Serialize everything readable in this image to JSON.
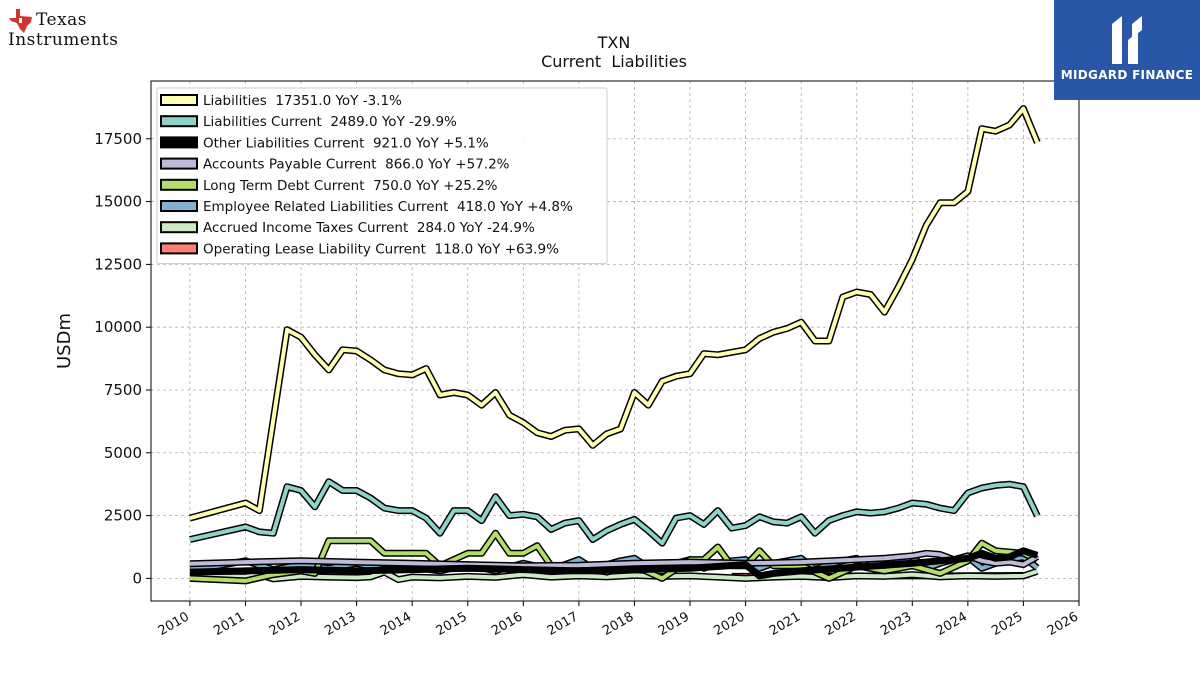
{
  "brand": {
    "left_logo_line1": "Texas",
    "left_logo_line2": "Instruments",
    "right_badge_text": "MIDGARD FINANCE",
    "right_badge_color": "#2a56a8",
    "left_logo_icon": "texas-state-icon"
  },
  "chart_data": {
    "type": "line",
    "title": "TXN",
    "subtitle": "Current  Liabilities",
    "xlabel": "",
    "ylabel": "USDm",
    "xlim": [
      2009.3,
      2026.0
    ],
    "ylim": [
      -900,
      19800
    ],
    "x_ticks": [
      "2010",
      "2011",
      "2012",
      "2013",
      "2014",
      "2015",
      "2016",
      "2017",
      "2018",
      "2019",
      "2020",
      "2021",
      "2022",
      "2023",
      "2024",
      "2025",
      "2026"
    ],
    "y_ticks": [
      0,
      2500,
      5000,
      7500,
      10000,
      12500,
      15000,
      17500
    ],
    "grid": true,
    "legend_position": "top-left",
    "series": [
      {
        "name": "Liabilities  17351.0 YoY -3.1%",
        "color": "#ffffb3",
        "x": [
          2010.0,
          2011.0,
          2011.25,
          2011.75,
          2012.0,
          2012.25,
          2012.5,
          2012.75,
          2013.0,
          2013.25,
          2013.5,
          2013.75,
          2014.0,
          2014.25,
          2014.5,
          2014.75,
          2015.0,
          2015.25,
          2015.5,
          2015.75,
          2016.0,
          2016.25,
          2016.5,
          2016.75,
          2017.0,
          2017.25,
          2017.5,
          2017.75,
          2018.0,
          2018.25,
          2018.5,
          2018.75,
          2019.0,
          2019.25,
          2019.5,
          2019.75,
          2020.0,
          2020.25,
          2020.5,
          2020.75,
          2021.0,
          2021.25,
          2021.5,
          2021.75,
          2022.0,
          2022.25,
          2022.5,
          2022.75,
          2023.0,
          2023.25,
          2023.5,
          2023.75,
          2024.0,
          2024.25,
          2024.5,
          2024.75,
          2025.0,
          2025.25
        ],
        "values": [
          2400,
          3000,
          2700,
          9900,
          9600,
          8900,
          8300,
          9100,
          9050,
          8700,
          8300,
          8150,
          8100,
          8350,
          7300,
          7400,
          7300,
          6900,
          7400,
          6500,
          6200,
          5800,
          5650,
          5900,
          5950,
          5300,
          5750,
          5950,
          7400,
          6900,
          7850,
          8050,
          8150,
          8950,
          8900,
          9000,
          9100,
          9550,
          9800,
          9950,
          10200,
          9450,
          9450,
          11200,
          11400,
          11300,
          10600,
          11600,
          12700,
          14050,
          14950,
          14950,
          15400,
          17900,
          17800,
          18050,
          18700,
          17351
        ]
      },
      {
        "name": "Liabilities Current  2489.0 YoY -29.9%",
        "color": "#8dd3c7",
        "x": [
          2010.0,
          2011.0,
          2011.25,
          2011.5,
          2011.75,
          2012.0,
          2012.25,
          2012.5,
          2012.75,
          2013.0,
          2013.25,
          2013.5,
          2013.75,
          2014.0,
          2014.25,
          2014.5,
          2014.75,
          2015.0,
          2015.25,
          2015.5,
          2015.75,
          2016.0,
          2016.25,
          2016.5,
          2016.75,
          2017.0,
          2017.25,
          2017.5,
          2017.75,
          2018.0,
          2018.25,
          2018.5,
          2018.75,
          2019.0,
          2019.25,
          2019.5,
          2019.75,
          2020.0,
          2020.25,
          2020.5,
          2020.75,
          2021.0,
          2021.25,
          2021.5,
          2021.75,
          2022.0,
          2022.25,
          2022.5,
          2022.75,
          2023.0,
          2023.25,
          2023.5,
          2023.75,
          2024.0,
          2024.25,
          2024.5,
          2024.75,
          2025.0,
          2025.25
        ],
        "values": [
          1550,
          2050,
          1850,
          1800,
          3650,
          3500,
          2850,
          3850,
          3500,
          3500,
          3200,
          2800,
          2700,
          2700,
          2400,
          1800,
          2700,
          2700,
          2300,
          3250,
          2500,
          2550,
          2450,
          1950,
          2200,
          2300,
          1550,
          1900,
          2150,
          2350,
          1900,
          1400,
          2400,
          2500,
          2150,
          2700,
          2000,
          2100,
          2450,
          2250,
          2200,
          2450,
          1800,
          2300,
          2500,
          2650,
          2600,
          2650,
          2800,
          3000,
          2950,
          2800,
          2700,
          3400,
          3600,
          3700,
          3750,
          3650,
          2489
        ]
      },
      {
        "name": "Other Liabilities Current  921.0 YoY +5.1%",
        "color": "#000000",
        "x": [
          2010.0,
          2011.0,
          2012.0,
          2013.0,
          2014.0,
          2015.0,
          2016.0,
          2017.0,
          2018.0,
          2019.0,
          2020.0,
          2020.25,
          2020.5,
          2021.0,
          2022.0,
          2023.0,
          2023.5,
          2024.0,
          2024.25,
          2024.5,
          2024.75,
          2025.0,
          2025.25
        ],
        "values": [
          250,
          300,
          350,
          300,
          350,
          400,
          350,
          300,
          350,
          400,
          550,
          100,
          200,
          300,
          450,
          600,
          700,
          800,
          1000,
          800,
          850,
          1100,
          921
        ]
      },
      {
        "name": "Accounts Payable Current  866.0 YoY +57.2%",
        "color": "#bebada",
        "x": [
          2010.0,
          2011.0,
          2012.0,
          2013.0,
          2014.0,
          2015.0,
          2016.0,
          2017.0,
          2018.0,
          2019.0,
          2020.0,
          2021.0,
          2022.0,
          2022.5,
          2023.0,
          2023.25,
          2023.5,
          2023.75,
          2024.0,
          2024.25,
          2024.5,
          2024.75,
          2025.0,
          2025.25
        ],
        "values": [
          580,
          650,
          700,
          650,
          600,
          550,
          500,
          520,
          600,
          650,
          600,
          650,
          750,
          800,
          900,
          1000,
          950,
          750,
          900,
          700,
          600,
          650,
          550,
          866
        ]
      },
      {
        "name": "Long Term Debt Current  750.0 YoY +25.2%",
        "color": "#b3de69",
        "x": [
          2010.0,
          2011.0,
          2011.5,
          2012.0,
          2012.25,
          2012.5,
          2013.0,
          2013.25,
          2013.5,
          2014.0,
          2014.25,
          2014.5,
          2015.0,
          2015.25,
          2015.5,
          2015.75,
          2016.0,
          2016.25,
          2016.5,
          2017.0,
          2017.5,
          2018.0,
          2018.5,
          2019.0,
          2019.25,
          2019.5,
          2019.75,
          2020.0,
          2020.25,
          2020.5,
          2021.0,
          2021.5,
          2022.0,
          2022.5,
          2023.0,
          2023.5,
          2024.0,
          2024.25,
          2024.5,
          2025.0,
          2025.25
        ],
        "values": [
          0,
          -100,
          150,
          300,
          200,
          1500,
          1500,
          1500,
          1000,
          1000,
          1000,
          500,
          1000,
          1000,
          1800,
          1000,
          1000,
          1300,
          500,
          500,
          250,
          500,
          0,
          750,
          750,
          1250,
          500,
          500,
          1100,
          500,
          500,
          0,
          500,
          300,
          500,
          200,
          700,
          1400,
          1100,
          1000,
          750
        ]
      },
      {
        "name": "Employee Related Liabilities Current  418.0 YoY +4.8%",
        "color": "#80b1d3",
        "x": [
          2010.0,
          2010.5,
          2011.0,
          2011.5,
          2012.0,
          2012.5,
          2013.0,
          2013.5,
          2014.0,
          2014.5,
          2015.0,
          2015.5,
          2016.0,
          2016.5,
          2017.0,
          2017.25,
          2017.5,
          2017.75,
          2018.0,
          2018.25,
          2018.5,
          2018.75,
          2019.0,
          2019.25,
          2019.5,
          2019.75,
          2020.0,
          2020.25,
          2020.5,
          2020.75,
          2021.0,
          2021.25,
          2021.5,
          2021.75,
          2022.0,
          2022.25,
          2022.5,
          2022.75,
          2023.0,
          2023.25,
          2023.5,
          2023.75,
          2024.0,
          2024.25,
          2024.5,
          2024.75,
          2025.0,
          2025.25
        ],
        "values": [
          400,
          500,
          700,
          350,
          550,
          400,
          600,
          350,
          450,
          300,
          550,
          300,
          600,
          350,
          750,
          400,
          550,
          700,
          800,
          450,
          500,
          600,
          750,
          400,
          600,
          700,
          750,
          400,
          600,
          700,
          800,
          350,
          550,
          700,
          800,
          400,
          550,
          700,
          850,
          400,
          600,
          750,
          850,
          400,
          600,
          750,
          850,
          418
        ]
      },
      {
        "name": "Accrued Income Taxes Current  284.0 YoY -24.9%",
        "color": "#ccebc5",
        "x": [
          2010.0,
          2011.0,
          2011.25,
          2011.5,
          2012.0,
          2012.5,
          2013.0,
          2013.25,
          2013.5,
          2013.75,
          2014.0,
          2014.5,
          2015.0,
          2015.5,
          2016.0,
          2016.5,
          2017.0,
          2017.5,
          2018.0,
          2018.5,
          2019.0,
          2019.5,
          2020.0,
          2020.5,
          2021.0,
          2021.5,
          2022.0,
          2022.5,
          2023.0,
          2023.5,
          2024.0,
          2024.5,
          2025.0,
          2025.25
        ],
        "values": [
          80,
          60,
          150,
          -20,
          80,
          50,
          30,
          60,
          250,
          -50,
          50,
          20,
          80,
          40,
          150,
          50,
          100,
          60,
          120,
          80,
          100,
          50,
          0,
          50,
          80,
          30,
          100,
          80,
          150,
          60,
          100,
          80,
          100,
          284
        ]
      },
      {
        "name": "Operating Lease Liability Current  118.0 YoY +63.9%",
        "color": "#fb8072",
        "x": [
          2019.75,
          2020.0,
          2020.5,
          2021.0,
          2021.5,
          2022.0,
          2022.5,
          2023.0,
          2023.5,
          2024.0,
          2024.5,
          2025.0
        ],
        "values": [
          80,
          80,
          85,
          90,
          90,
          95,
          95,
          100,
          100,
          105,
          110,
          118
        ]
      }
    ]
  }
}
